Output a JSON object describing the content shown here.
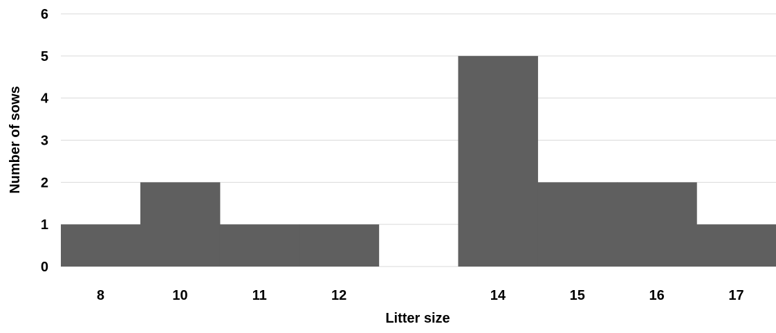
{
  "chart_data": {
    "type": "bar",
    "categories": [
      "8",
      "10",
      "11",
      "12",
      "",
      "14",
      "15",
      "16",
      "17"
    ],
    "values": [
      1,
      2,
      1,
      1,
      0,
      5,
      2,
      2,
      1
    ],
    "title": "",
    "xlabel": "Litter size",
    "ylabel": "Number of sows",
    "ylim": [
      0,
      6
    ],
    "yticks": [
      0,
      1,
      2,
      3,
      4,
      5,
      6
    ],
    "grid": true,
    "bar_color": "#5f5f5f",
    "bar_gap": 0,
    "legend": "none"
  }
}
